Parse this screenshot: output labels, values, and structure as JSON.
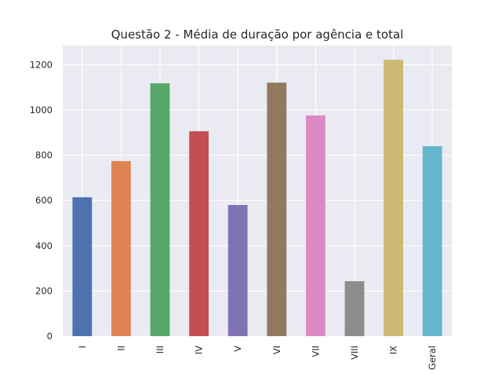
{
  "chart_data": {
    "type": "bar",
    "title": "Questão 2 - Média de duração por agência e total",
    "xlabel": "",
    "ylabel": "",
    "categories": [
      "I",
      "II",
      "III",
      "IV",
      "V",
      "VI",
      "VII",
      "VIII",
      "IX",
      "Geral"
    ],
    "values": [
      614,
      774,
      1118,
      906,
      580,
      1121,
      976,
      243,
      1222,
      840
    ],
    "ylim": [
      0,
      1285
    ],
    "yticks": [
      0,
      200,
      400,
      600,
      800,
      1000,
      1200
    ],
    "grid": true,
    "legend": "none",
    "colors": [
      "#4c72b0",
      "#dd8452",
      "#55a868",
      "#c44e52",
      "#8172b3",
      "#937860",
      "#da8bc3",
      "#8c8c8c",
      "#ccb974",
      "#64b5cd"
    ],
    "background_color": "#eaeaf2"
  }
}
